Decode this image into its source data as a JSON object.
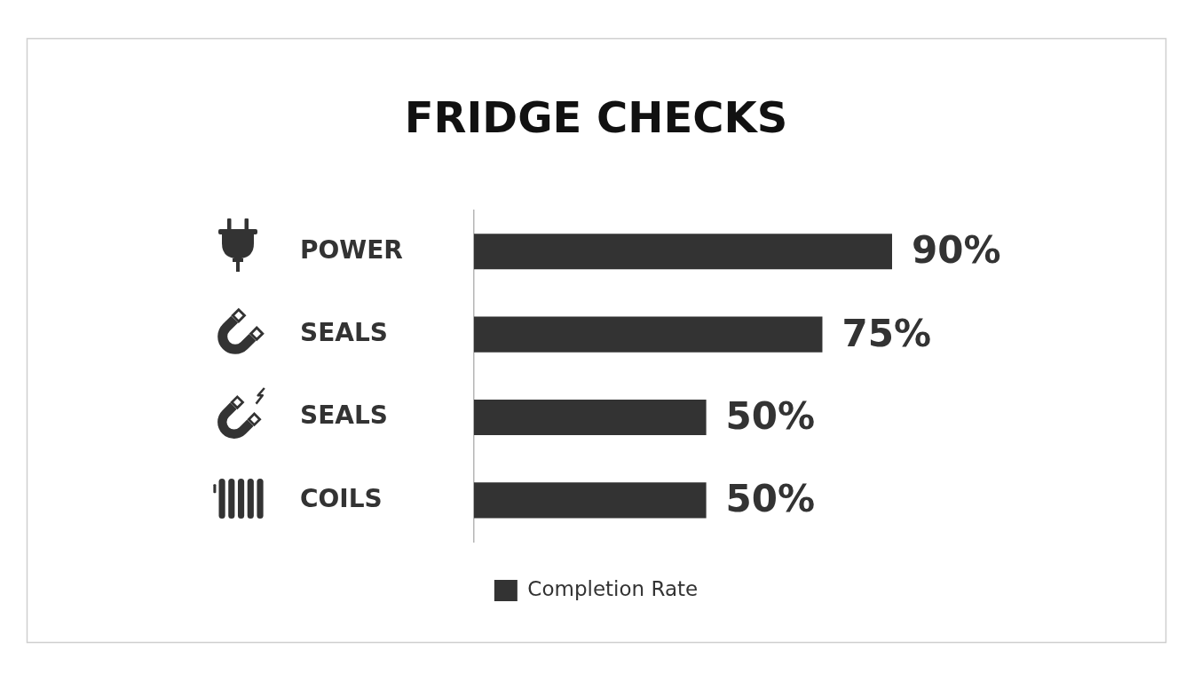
{
  "chart_data": {
    "type": "bar",
    "orientation": "horizontal",
    "title": "FRIDGE CHECKS",
    "categories": [
      "POWER",
      "SEALS",
      "SEALS",
      "COILS"
    ],
    "series": [
      {
        "name": "Completion Rate",
        "color": "#333333",
        "values": [
          90,
          75,
          50,
          50
        ],
        "value_labels": [
          "90%",
          "75%",
          "50%",
          "50%"
        ]
      }
    ],
    "tick_labels": "y",
    "legend": "bottom"
  }
}
